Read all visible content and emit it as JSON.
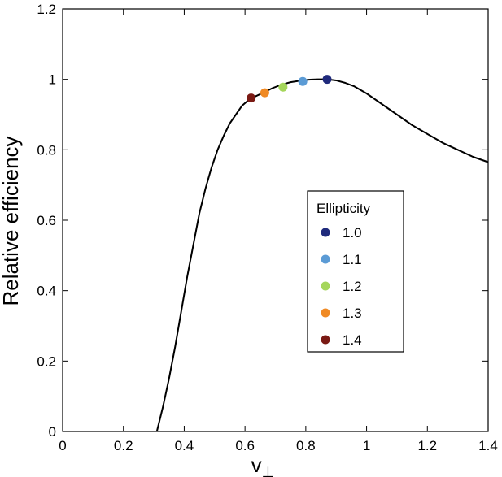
{
  "chart_data": {
    "type": "line",
    "xlabel": "v",
    "xlabel_subscript": "⊥",
    "ylabel": "Relative efficiency",
    "xlim": [
      0,
      1.4
    ],
    "ylim": [
      0,
      1.2
    ],
    "xticks": [
      0,
      0.2,
      0.4,
      0.6,
      0.8,
      1,
      1.2,
      1.4
    ],
    "xtick_labels": [
      "0",
      "0.2",
      "0.4",
      "0.6",
      "0.8",
      "1",
      "1.2",
      "1.4"
    ],
    "yticks": [
      0,
      0.2,
      0.4,
      0.6,
      0.8,
      1,
      1.2
    ],
    "ytick_labels": [
      "0",
      "0.2",
      "0.4",
      "0.6",
      "0.8",
      "1",
      "1.2"
    ],
    "grid": false,
    "series": [
      {
        "color": "#000000",
        "x": [
          0.31,
          0.33,
          0.35,
          0.37,
          0.39,
          0.41,
          0.43,
          0.45,
          0.47,
          0.49,
          0.51,
          0.53,
          0.55,
          0.57,
          0.59,
          0.61,
          0.63,
          0.66,
          0.69,
          0.72,
          0.75,
          0.78,
          0.81,
          0.84,
          0.87,
          0.9,
          0.93,
          0.96,
          1.0,
          1.05,
          1.1,
          1.15,
          1.2,
          1.25,
          1.3,
          1.35,
          1.4
        ],
        "y": [
          0.0,
          0.07,
          0.15,
          0.24,
          0.34,
          0.44,
          0.53,
          0.62,
          0.69,
          0.75,
          0.8,
          0.84,
          0.875,
          0.9,
          0.925,
          0.94,
          0.95,
          0.962,
          0.975,
          0.985,
          0.992,
          0.996,
          0.999,
          1.0,
          1.0,
          0.997,
          0.99,
          0.98,
          0.96,
          0.93,
          0.9,
          0.87,
          0.845,
          0.82,
          0.8,
          0.78,
          0.765
        ]
      }
    ],
    "markers": [
      {
        "label": "1.0",
        "x": 0.87,
        "y": 1.0,
        "color": "#1f2a7c"
      },
      {
        "label": "1.1",
        "x": 0.79,
        "y": 0.994,
        "color": "#5b9bd5"
      },
      {
        "label": "1.2",
        "x": 0.725,
        "y": 0.978,
        "color": "#a5d65b"
      },
      {
        "label": "1.3",
        "x": 0.665,
        "y": 0.962,
        "color": "#f08a24"
      },
      {
        "label": "1.4",
        "x": 0.62,
        "y": 0.947,
        "color": "#7a1a14"
      }
    ],
    "legend": {
      "title": "Ellipticity",
      "placement": "center-right"
    }
  }
}
